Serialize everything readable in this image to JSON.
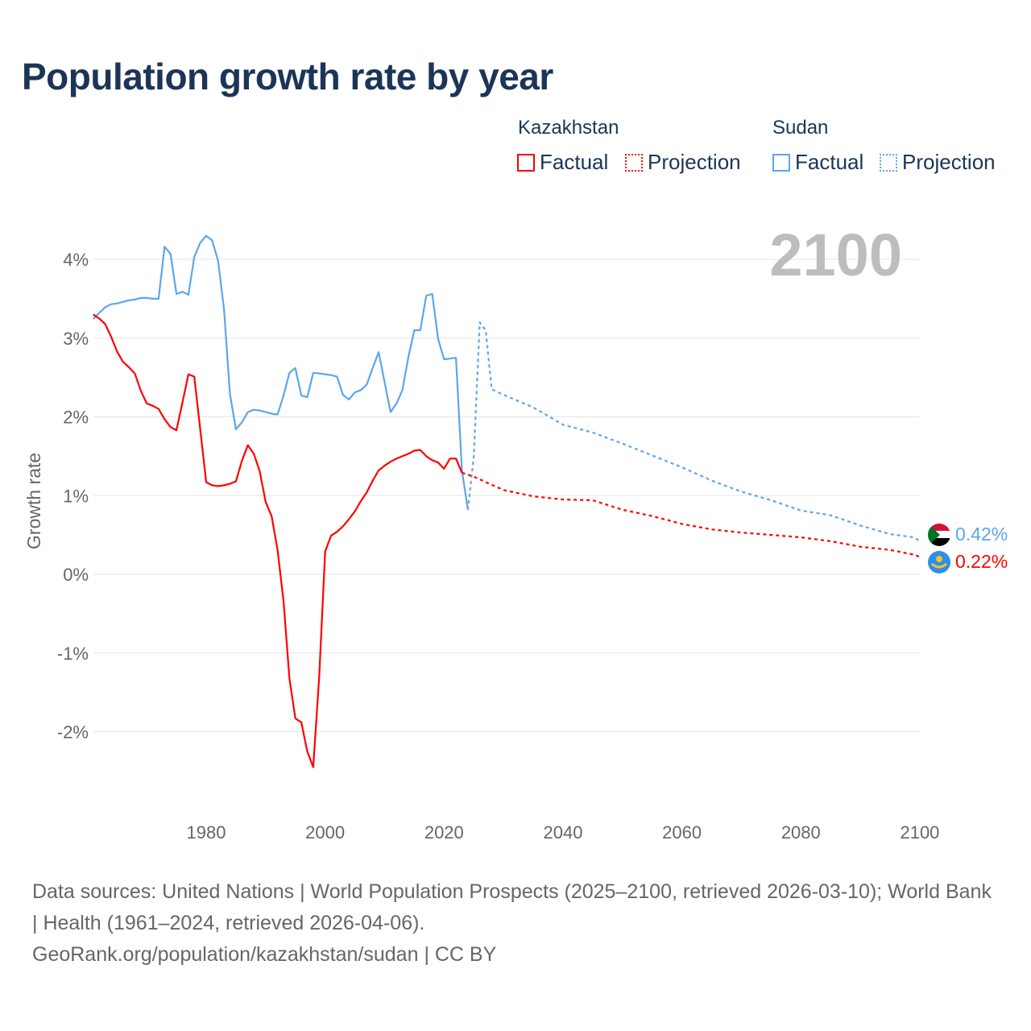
{
  "title": "Population growth rate by year",
  "legend": {
    "groups": [
      {
        "country": "Kazakhstan",
        "factual": "Factual",
        "projection": "Projection",
        "color": "#ff0000"
      },
      {
        "country": "Sudan",
        "factual": "Factual",
        "projection": "Projection",
        "color": "#5da5ee"
      }
    ]
  },
  "current_year": "2100",
  "end_labels": {
    "sudan": "0.42%",
    "kazakhstan": "0.22%"
  },
  "footer": {
    "sources": "Data sources: United Nations | World Population Prospects (2025–2100, retrieved 2026-03-10); World Bank | Health (1961–2024, retrieved 2026-04-06).",
    "credit": "GeoRank.org/population/kazakhstan/sudan | CC BY"
  },
  "chart_data": {
    "type": "line",
    "title": "Population growth rate by year",
    "xlabel": "",
    "ylabel": "Growth rate",
    "xlim": [
      1961,
      2100
    ],
    "ylim": [
      -3,
      4.5
    ],
    "xticks": [
      "1980",
      "2000",
      "2020",
      "2040",
      "2060",
      "2080",
      "2100"
    ],
    "yticks": [
      "4%",
      "3%",
      "2%",
      "1%",
      "0%",
      "-1%",
      "-2%"
    ],
    "ytick_values": [
      4,
      3,
      2,
      1,
      0,
      -1,
      -2
    ],
    "xtick_values": [
      1980,
      2000,
      2020,
      2040,
      2060,
      2080,
      2100
    ],
    "grid": true,
    "series": [
      {
        "name": "Sudan Factual",
        "color": "#5da5ee",
        "dashed": false,
        "points": [
          [
            1961,
            3.24
          ],
          [
            1962,
            3.32
          ],
          [
            1963,
            3.39
          ],
          [
            1964,
            3.43
          ],
          [
            1965,
            3.44
          ],
          [
            1966,
            3.46
          ],
          [
            1967,
            3.48
          ],
          [
            1968,
            3.49
          ],
          [
            1969,
            3.51
          ],
          [
            1970,
            3.51
          ],
          [
            1971,
            3.5
          ],
          [
            1972,
            3.5
          ],
          [
            1973,
            4.16
          ],
          [
            1974,
            4.07
          ],
          [
            1975,
            3.56
          ],
          [
            1976,
            3.59
          ],
          [
            1977,
            3.55
          ],
          [
            1978,
            4.03
          ],
          [
            1979,
            4.21
          ],
          [
            1980,
            4.3
          ],
          [
            1981,
            4.24
          ],
          [
            1982,
            3.98
          ],
          [
            1983,
            3.37
          ],
          [
            1984,
            2.29
          ],
          [
            1985,
            1.84
          ],
          [
            1986,
            1.93
          ],
          [
            1987,
            2.06
          ],
          [
            1988,
            2.09
          ],
          [
            1989,
            2.08
          ],
          [
            1990,
            2.06
          ],
          [
            1991,
            2.04
          ],
          [
            1992,
            2.03
          ],
          [
            1993,
            2.27
          ],
          [
            1994,
            2.56
          ],
          [
            1995,
            2.62
          ],
          [
            1996,
            2.27
          ],
          [
            1997,
            2.25
          ],
          [
            1998,
            2.56
          ],
          [
            1999,
            2.55
          ],
          [
            2000,
            2.54
          ],
          [
            2001,
            2.53
          ],
          [
            2002,
            2.51
          ],
          [
            2003,
            2.28
          ],
          [
            2004,
            2.22
          ],
          [
            2005,
            2.31
          ],
          [
            2006,
            2.34
          ],
          [
            2007,
            2.41
          ],
          [
            2008,
            2.62
          ],
          [
            2009,
            2.82
          ],
          [
            2010,
            2.44
          ],
          [
            2011,
            2.06
          ],
          [
            2012,
            2.17
          ],
          [
            2013,
            2.34
          ],
          [
            2014,
            2.76
          ],
          [
            2015,
            3.1
          ],
          [
            2016,
            3.1
          ],
          [
            2017,
            3.54
          ],
          [
            2018,
            3.56
          ],
          [
            2019,
            2.99
          ],
          [
            2020,
            2.73
          ],
          [
            2021,
            2.74
          ],
          [
            2022,
            2.75
          ],
          [
            2023,
            1.32
          ],
          [
            2024,
            0.82
          ]
        ]
      },
      {
        "name": "Sudan Projection",
        "color": "#5da5ee",
        "dashed": true,
        "points": [
          [
            2024,
            0.82
          ],
          [
            2025,
            1.5
          ],
          [
            2026,
            3.2
          ],
          [
            2027,
            3.1
          ],
          [
            2028,
            2.35
          ],
          [
            2030,
            2.28
          ],
          [
            2035,
            2.12
          ],
          [
            2040,
            1.9
          ],
          [
            2045,
            1.8
          ],
          [
            2050,
            1.66
          ],
          [
            2055,
            1.51
          ],
          [
            2060,
            1.36
          ],
          [
            2065,
            1.19
          ],
          [
            2070,
            1.05
          ],
          [
            2075,
            0.94
          ],
          [
            2080,
            0.81
          ],
          [
            2085,
            0.75
          ],
          [
            2090,
            0.62
          ],
          [
            2095,
            0.51
          ],
          [
            2099,
            0.47
          ],
          [
            2100,
            0.42
          ]
        ]
      },
      {
        "name": "Kazakhstan Factual",
        "color": "#ff0000",
        "dashed": false,
        "points": [
          [
            1961,
            3.3
          ],
          [
            1962,
            3.25
          ],
          [
            1963,
            3.18
          ],
          [
            1964,
            3.02
          ],
          [
            1965,
            2.83
          ],
          [
            1966,
            2.7
          ],
          [
            1967,
            2.63
          ],
          [
            1968,
            2.55
          ],
          [
            1969,
            2.33
          ],
          [
            1970,
            2.17
          ],
          [
            1971,
            2.14
          ],
          [
            1972,
            2.1
          ],
          [
            1973,
            1.97
          ],
          [
            1974,
            1.87
          ],
          [
            1975,
            1.83
          ],
          [
            1976,
            2.18
          ],
          [
            1977,
            2.54
          ],
          [
            1978,
            2.51
          ],
          [
            1979,
            1.84
          ],
          [
            1980,
            1.17
          ],
          [
            1981,
            1.13
          ],
          [
            1982,
            1.12
          ],
          [
            1983,
            1.13
          ],
          [
            1984,
            1.15
          ],
          [
            1985,
            1.18
          ],
          [
            1986,
            1.44
          ],
          [
            1987,
            1.64
          ],
          [
            1988,
            1.53
          ],
          [
            1989,
            1.31
          ],
          [
            1990,
            0.92
          ],
          [
            1991,
            0.74
          ],
          [
            1992,
            0.31
          ],
          [
            1993,
            -0.34
          ],
          [
            1994,
            -1.33
          ],
          [
            1995,
            -1.83
          ],
          [
            1996,
            -1.88
          ],
          [
            1997,
            -2.25
          ],
          [
            1998,
            -2.45
          ],
          [
            1999,
            -1.3
          ],
          [
            2000,
            0.29
          ],
          [
            2001,
            0.49
          ],
          [
            2002,
            0.54
          ],
          [
            2003,
            0.61
          ],
          [
            2004,
            0.7
          ],
          [
            2005,
            0.8
          ],
          [
            2006,
            0.93
          ],
          [
            2007,
            1.04
          ],
          [
            2008,
            1.19
          ],
          [
            2009,
            1.32
          ],
          [
            2010,
            1.38
          ],
          [
            2011,
            1.43
          ],
          [
            2012,
            1.47
          ],
          [
            2013,
            1.5
          ],
          [
            2014,
            1.53
          ],
          [
            2015,
            1.57
          ],
          [
            2016,
            1.58
          ],
          [
            2017,
            1.5
          ],
          [
            2018,
            1.45
          ],
          [
            2019,
            1.42
          ],
          [
            2020,
            1.34
          ],
          [
            2021,
            1.47
          ],
          [
            2022,
            1.47
          ],
          [
            2023,
            1.29
          ]
        ]
      },
      {
        "name": "Kazakhstan Projection",
        "color": "#ff0000",
        "dashed": true,
        "points": [
          [
            2023,
            1.29
          ],
          [
            2025,
            1.24
          ],
          [
            2030,
            1.07
          ],
          [
            2035,
            0.99
          ],
          [
            2040,
            0.95
          ],
          [
            2045,
            0.94
          ],
          [
            2050,
            0.82
          ],
          [
            2055,
            0.74
          ],
          [
            2060,
            0.64
          ],
          [
            2065,
            0.57
          ],
          [
            2070,
            0.53
          ],
          [
            2075,
            0.5
          ],
          [
            2080,
            0.47
          ],
          [
            2085,
            0.42
          ],
          [
            2090,
            0.35
          ],
          [
            2095,
            0.31
          ],
          [
            2099,
            0.25
          ],
          [
            2100,
            0.22
          ]
        ]
      }
    ]
  }
}
